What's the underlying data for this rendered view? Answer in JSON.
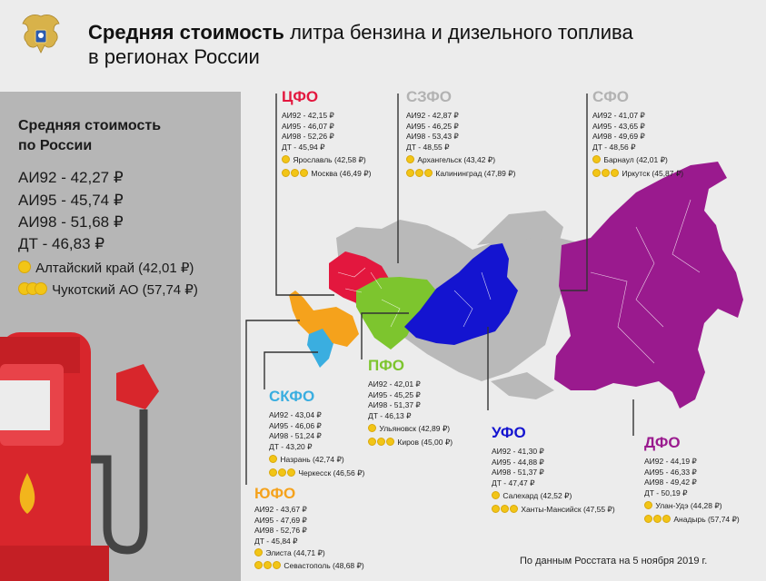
{
  "title": {
    "bold": "Средняя стоимость",
    "rest": " литра бензина и дизельного топлива",
    "line2": "в регионах России"
  },
  "russia": {
    "header_line1": "Средняя стоимость",
    "header_line2": "по России",
    "ai92": "АИ92 - 42,27 ₽",
    "ai95": "АИ95 - 45,74 ₽",
    "ai98": "АИ98 - 51,68 ₽",
    "dt": "ДТ - 46,83 ₽",
    "cheapest": "Алтайский край (42,01 ₽)",
    "priciest": "Чукотский АО (57,74 ₽)"
  },
  "districts": {
    "cfo": {
      "name": "ЦФО",
      "color": "#e3173e",
      "ai92": "АИ92 - 42,15 ₽",
      "ai95": "АИ95 - 46,07 ₽",
      "ai98": "АИ98 - 52,26 ₽",
      "dt": "ДТ - 45,94 ₽",
      "cheap": "Ярославль (42,58 ₽)",
      "pricey": "Москва (46,49 ₽)"
    },
    "szfo": {
      "name": "СЗФО",
      "color": "#b9b9b9",
      "ai92": "АИ92 - 42,87 ₽",
      "ai95": "АИ95 - 46,25 ₽",
      "ai98": "АИ98 - 53,43 ₽",
      "dt": "ДТ - 48,55 ₽",
      "cheap": "Архангельск (43,42 ₽)",
      "pricey": "Калининград (47,89 ₽)"
    },
    "sfo": {
      "name": "СФО",
      "color": "#b9b9b9",
      "ai92": "АИ92 - 41,07 ₽",
      "ai95": "АИ95 - 43,65 ₽",
      "ai98": "АИ98 - 49,69 ₽",
      "dt": "ДТ - 48,56 ₽",
      "cheap": "Барнаул (42,01 ₽)",
      "pricey": "Иркутск (45,87 ₽)"
    },
    "pfo": {
      "name": "ПФО",
      "color": "#7dc52e",
      "ai92": "АИ92 - 42,01 ₽",
      "ai95": "АИ95 - 45,25 ₽",
      "ai98": "АИ98 - 51,37 ₽",
      "dt": "ДТ - 46,13 ₽",
      "cheap": "Ульяновск (42,89 ₽)",
      "pricey": "Киров (45,00 ₽)"
    },
    "skfo": {
      "name": "СКФО",
      "color": "#3aaee0",
      "ai92": "АИ92 - 43,04 ₽",
      "ai95": "АИ95 - 46,06 ₽",
      "ai98": "АИ98 - 51,24 ₽",
      "dt": "ДТ - 43,20 ₽",
      "cheap": "Назрань (42,74 ₽)",
      "pricey": "Черкесск (46,56 ₽)"
    },
    "ufo": {
      "name": "УФО",
      "color": "#1414d0",
      "ai92": "АИ92 - 41,30 ₽",
      "ai95": "АИ95 - 44,88 ₽",
      "ai98": "АИ98 - 51,37 ₽",
      "dt": "ДТ - 47,47 ₽",
      "cheap": "Салехард (42,52 ₽)",
      "pricey": "Ханты-Мансийск (47,55 ₽)"
    },
    "yufo": {
      "name": "ЮФО",
      "color": "#f5a21c",
      "ai92": "АИ92 - 43,67 ₽",
      "ai95": "АИ95 - 47,69 ₽",
      "ai98": "АИ98 - 52,76 ₽",
      "dt": "ДТ - 45,84 ₽",
      "cheap": "Элиста (44,71 ₽)",
      "pricey": "Севастополь (48,68 ₽)"
    },
    "dfo": {
      "name": "ДФО",
      "color": "#9a1a8e",
      "ai92": "АИ92 - 44,19 ₽",
      "ai95": "АИ95 - 46,33 ₽",
      "ai98": "АИ98 - 49,42 ₽",
      "dt": "ДТ - 50,19 ₽",
      "cheap": "Улан-Удэ (44,28 ₽)",
      "pricey": "Анадырь (57,74 ₽)"
    }
  },
  "colors": {
    "background": "#ececec",
    "panel": "#b6b6b6",
    "coin": "#f2c516",
    "pump": "#d8262c"
  },
  "icons": [
    "emblem-icon",
    "fuel-pump-icon",
    "coin-icon"
  ],
  "footnote": "По данным Росстата на 5 ноября 2019 г."
}
